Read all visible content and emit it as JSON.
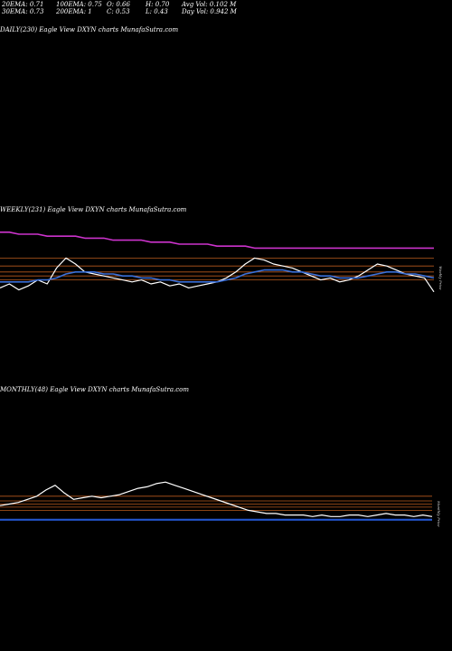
{
  "header": {
    "row1": [
      "20EMA: 0.71",
      "100EMA: 0.75",
      "O: 0.66",
      "H: 0.70",
      "Avg Vol: 0.102  M"
    ],
    "row2": [
      "30EMA: 0.73",
      "200EMA: 1",
      "C: 0.53",
      "L: 0.43",
      "Day Vol: 0.942  M"
    ]
  },
  "colors": {
    "background": "#000000",
    "price_line": "#ffffff",
    "ema_line": "#3a6fd8",
    "ema_line_2": "#2255cc",
    "long_ema": "#cc33cc",
    "support_lines": "#b85a1e"
  },
  "panels": {
    "daily": {
      "title": "DAILY(230) Eagle   View  DXYN  charts MunafaSutra.com"
    },
    "weekly": {
      "title": "WEEKLY(231) Eagle   View  DXYN  charts MunafaSutra.com",
      "side_label": "Weekly Price"
    },
    "monthly": {
      "title": "MONTHLY(48) Eagle   View  DXYN  charts MunafaSutra.com",
      "side_label": "Monthly Price"
    }
  },
  "chart_data": [
    {
      "type": "line",
      "title": "WEEKLY(231) Eagle   View  DXYN  charts MunafaSutra.com",
      "series": [
        {
          "values": [
            0.8,
            0.82,
            0.79,
            0.81,
            0.84,
            0.82,
            0.9,
            0.95,
            0.92,
            0.88,
            0.87,
            0.86,
            0.85,
            0.84,
            0.83,
            0.84,
            0.82,
            0.83,
            0.81,
            0.82,
            0.8,
            0.81,
            0.82,
            0.83,
            0.85,
            0.88,
            0.92,
            0.95,
            0.94,
            0.92,
            0.91,
            0.9,
            0.88,
            0.86,
            0.84,
            0.85,
            0.83,
            0.84,
            0.86,
            0.89,
            0.92,
            0.91,
            0.89,
            0.87,
            0.86,
            0.85,
            0.78
          ]
        },
        {
          "values": [
            0.83,
            0.83,
            0.83,
            0.83,
            0.84,
            0.84,
            0.85,
            0.87,
            0.88,
            0.88,
            0.88,
            0.87,
            0.87,
            0.86,
            0.86,
            0.85,
            0.85,
            0.84,
            0.84,
            0.83,
            0.83,
            0.83,
            0.83,
            0.83,
            0.84,
            0.85,
            0.87,
            0.88,
            0.89,
            0.89,
            0.89,
            0.88,
            0.88,
            0.87,
            0.86,
            0.86,
            0.85,
            0.85,
            0.85,
            0.86,
            0.87,
            0.88,
            0.88,
            0.87,
            0.87,
            0.86,
            0.85
          ]
        },
        {
          "values": [
            1.08,
            1.08,
            1.07,
            1.07,
            1.07,
            1.06,
            1.06,
            1.06,
            1.06,
            1.05,
            1.05,
            1.05,
            1.04,
            1.04,
            1.04,
            1.04,
            1.03,
            1.03,
            1.03,
            1.02,
            1.02,
            1.02,
            1.02,
            1.01,
            1.01,
            1.01,
            1.01,
            1.0,
            1.0,
            1.0,
            1.0,
            1.0,
            1.0,
            1.0,
            1.0,
            1.0,
            1.0,
            1.0,
            1.0,
            1.0,
            1.0,
            1.0,
            1.0,
            1.0,
            1.0,
            1.0,
            1.0
          ]
        }
      ],
      "levels": [
        0.95,
        0.91,
        0.88,
        0.86,
        0.84
      ]
    },
    {
      "type": "line",
      "title": "MONTHLY(48) Eagle   View  DXYN  charts MunafaSutra.com",
      "series": [
        {
          "values": [
            0.92,
            0.93,
            0.94,
            0.96,
            0.98,
            1.02,
            1.05,
            1.0,
            0.96,
            0.97,
            0.98,
            0.97,
            0.98,
            0.99,
            1.01,
            1.03,
            1.04,
            1.06,
            1.07,
            1.05,
            1.03,
            1.01,
            0.99,
            0.97,
            0.95,
            0.93,
            0.91,
            0.89,
            0.88,
            0.87,
            0.87,
            0.86,
            0.86,
            0.86,
            0.85,
            0.86,
            0.85,
            0.85,
            0.86,
            0.86,
            0.85,
            0.86,
            0.87,
            0.86,
            0.86,
            0.85,
            0.86,
            0.85
          ]
        },
        {
          "values": [
            0.83,
            0.83,
            0.83,
            0.83,
            0.83,
            0.83,
            0.83,
            0.83,
            0.83,
            0.83,
            0.83,
            0.83,
            0.83,
            0.83,
            0.83,
            0.83,
            0.83,
            0.83,
            0.83,
            0.83,
            0.83,
            0.83,
            0.83,
            0.83,
            0.83,
            0.83,
            0.83,
            0.83,
            0.83,
            0.83,
            0.83,
            0.83,
            0.83,
            0.83,
            0.83,
            0.83,
            0.83,
            0.83,
            0.83,
            0.83,
            0.83,
            0.83,
            0.83,
            0.83,
            0.83,
            0.83,
            0.83,
            0.83
          ]
        }
      ],
      "levels": [
        0.98,
        0.95,
        0.93,
        0.91,
        0.89
      ]
    }
  ]
}
